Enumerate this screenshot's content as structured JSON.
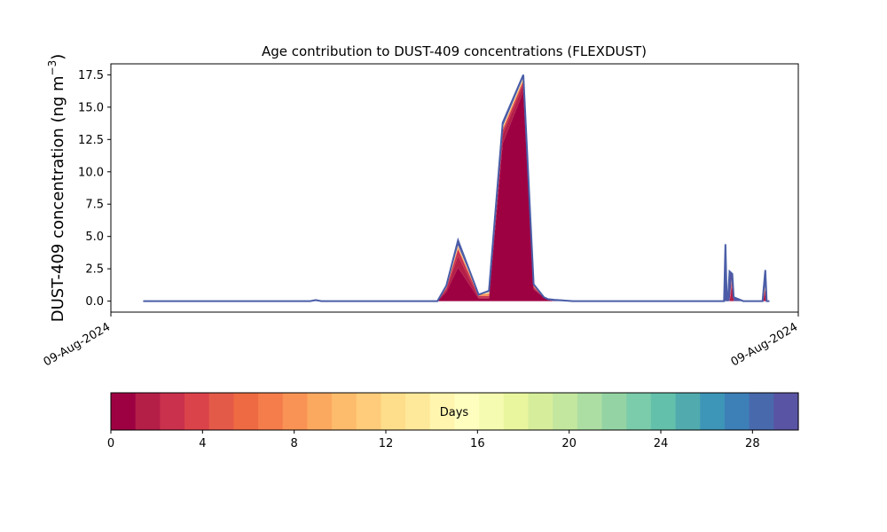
{
  "chart_data": {
    "type": "area",
    "stacked": true,
    "title": "Age contribution to DUST-409 concentrations (FLEXDUST)",
    "ylabel": "DUST-409 concentration (ng m",
    "ylabel_sup": "−3",
    "ylabel_close": ")",
    "ylim": [
      -0.85,
      18.35
    ],
    "y_ticks": [
      "0.0",
      "2.5",
      "5.0",
      "7.5",
      "10.0",
      "12.5",
      "15.0",
      "17.5"
    ],
    "y_tick_values": [
      0,
      2.5,
      5,
      7.5,
      10,
      12.5,
      15,
      17.5
    ],
    "x_ticks": [
      "09-Aug-2024",
      "09-Aug-2024"
    ],
    "xlim": [
      0,
      100
    ],
    "x": [
      4.7,
      29.0,
      29.8,
      30.6,
      47.5,
      48.8,
      50.5,
      53.5,
      55.0,
      57.0,
      60.0,
      61.5,
      63.0,
      63.6,
      64.5,
      67.2,
      87.0,
      88.8,
      89.2,
      89.4,
      89.6,
      89.8,
      90.0,
      90.4,
      90.6,
      92.0,
      94.8,
      95.2,
      95.4,
      95.8
    ],
    "series": [
      {
        "age_days": 1,
        "values": [
          0,
          0,
          0,
          0,
          0,
          0.7,
          2.6,
          0.2,
          0.2,
          12.2,
          16.2,
          0.9,
          0.3,
          0.1,
          0,
          0,
          0,
          0,
          0,
          0,
          0,
          0,
          0,
          0,
          0,
          0,
          0,
          0,
          0,
          0
        ]
      },
      {
        "age_days": 2,
        "values": [
          0,
          0,
          0,
          0,
          0,
          0.2,
          0.9,
          0.1,
          0.1,
          0.7,
          0.5,
          0.1,
          0,
          0,
          0,
          0,
          0,
          0,
          0,
          0,
          0,
          0,
          0,
          1.2,
          0,
          0,
          0,
          0.6,
          0,
          0
        ]
      },
      {
        "age_days": 3,
        "values": [
          0,
          0,
          0,
          0,
          0,
          0.1,
          0.5,
          0.1,
          0.1,
          0.3,
          0.3,
          0.1,
          0,
          0,
          0,
          0,
          0,
          0,
          0,
          0,
          0,
          0,
          0,
          0.6,
          0,
          0,
          0,
          0.3,
          0,
          0
        ]
      },
      {
        "age_days": 8,
        "values": [
          0,
          0,
          0,
          0,
          0,
          0.1,
          0.2,
          0.1,
          0.2,
          0.2,
          0.2,
          0.1,
          0,
          0,
          0,
          0,
          0,
          0,
          0,
          0,
          0,
          0,
          0,
          0.2,
          0,
          0,
          0,
          0.2,
          0,
          0
        ]
      },
      {
        "age_days": 15,
        "values": [
          0,
          0,
          0,
          0,
          0,
          0,
          0.1,
          0,
          0.1,
          0.1,
          0.1,
          0,
          0,
          0,
          0,
          0,
          0,
          0,
          0,
          0,
          0,
          0,
          0,
          0.1,
          0,
          0,
          0,
          0.1,
          0,
          0
        ]
      },
      {
        "age_days": 30,
        "values": [
          0,
          0,
          0.08,
          0,
          0,
          0.1,
          0.4,
          0,
          0.1,
          0.3,
          0.2,
          0.1,
          0,
          0.05,
          0.1,
          0,
          0,
          0,
          0,
          4.4,
          0,
          0.4,
          2.3,
          0,
          0.3,
          0,
          0,
          1.2,
          0,
          0
        ]
      }
    ],
    "colorbar": {
      "label": "Days",
      "range": [
        0,
        30
      ],
      "ticks": [
        "0",
        "4",
        "8",
        "12",
        "16",
        "20",
        "24",
        "28"
      ],
      "tick_values": [
        0,
        4,
        8,
        12,
        16,
        20,
        24,
        28
      ],
      "colormap": "Spectral",
      "colors": [
        "#9e0142",
        "#b41f48",
        "#c9314c",
        "#db434b",
        "#e45a49",
        "#ee6a42",
        "#f57d4b",
        "#f99355",
        "#fca960",
        "#fdbc6c",
        "#fecc7a",
        "#fede8b",
        "#fee99b",
        "#fff5ae",
        "#fefebe",
        "#f5fbb0",
        "#e9f69e",
        "#d6ee9b",
        "#c3e79f",
        "#acdea3",
        "#94d4a4",
        "#7accaa",
        "#63c0aa",
        "#51abae",
        "#3d95b8",
        "#3d7fb7",
        "#4969ad",
        "#5a54a4"
      ]
    },
    "outline_color": "#4a5ea8",
    "grid": false,
    "legend": "none"
  }
}
